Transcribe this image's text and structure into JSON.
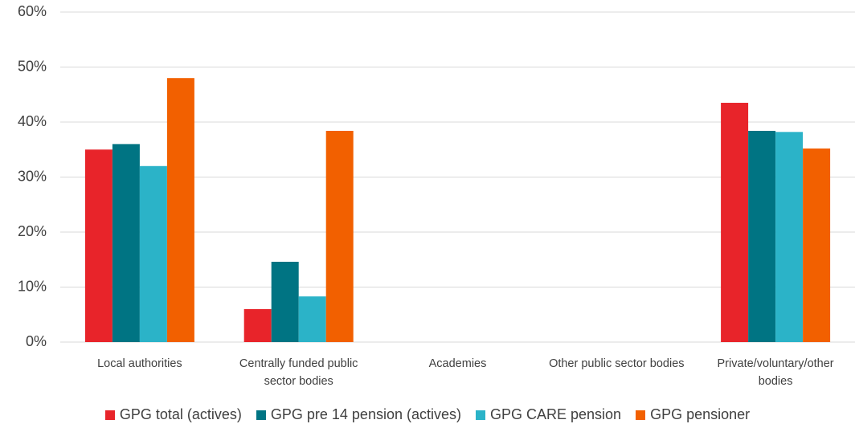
{
  "chart_data": {
    "type": "bar",
    "categories": [
      "Local authorities",
      "Centrally funded public sector bodies",
      "Academies",
      "Other public sector bodies",
      "Private/voluntary/other bodies"
    ],
    "series": [
      {
        "name": "GPG total (actives)",
        "color": "#e8242a",
        "values": [
          35,
          6,
          null,
          null,
          43.5
        ]
      },
      {
        "name": "GPG pre 14 pension (actives)",
        "color": "#007483",
        "values": [
          36,
          14.6,
          null,
          null,
          38.4
        ]
      },
      {
        "name": "GPG CARE pension",
        "color": "#2bb3c8",
        "values": [
          32,
          8.3,
          null,
          null,
          38.2
        ]
      },
      {
        "name": "GPG pensioner",
        "color": "#f26000",
        "values": [
          48,
          38.4,
          null,
          null,
          35.2
        ]
      }
    ],
    "ylim": [
      0,
      60
    ],
    "yticks": [
      {
        "value": 0,
        "label": "0%"
      },
      {
        "value": 10,
        "label": "10%"
      },
      {
        "value": 20,
        "label": "20%"
      },
      {
        "value": 30,
        "label": "30%"
      },
      {
        "value": 40,
        "label": "40%"
      },
      {
        "value": 50,
        "label": "50%"
      },
      {
        "value": 60,
        "label": "60%"
      }
    ],
    "grid": true,
    "legend": "bottom"
  }
}
